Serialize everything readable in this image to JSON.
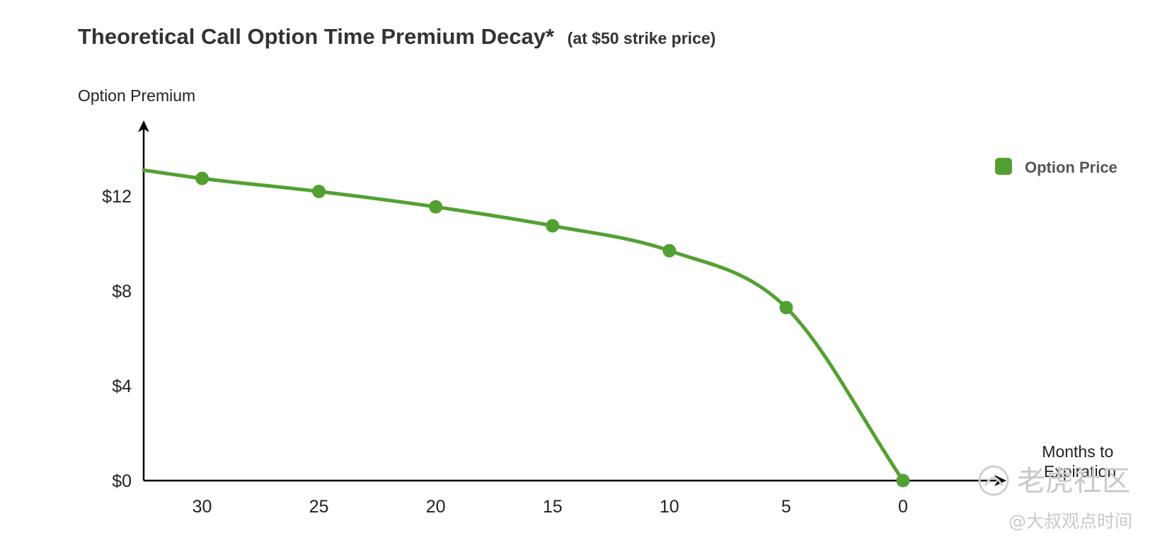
{
  "chart_data": {
    "type": "line",
    "title": "Theoretical Call Option Time Premium Decay*",
    "subtitle": "(at $50 strike price)",
    "ylabel": "Option Premium",
    "xlabel": "Months to Expiration",
    "x_ticks": [
      30,
      25,
      20,
      15,
      10,
      5,
      0
    ],
    "y_ticks": [
      0,
      4,
      8,
      12
    ],
    "y_tick_labels": [
      "$0",
      "$4",
      "$8",
      "$12"
    ],
    "xlim": [
      32.5,
      -4
    ],
    "ylim": [
      0,
      15.5
    ],
    "series": [
      {
        "name": "Option Price",
        "color": "#53a032",
        "x": [
          30,
          25,
          20,
          15,
          10,
          5,
          0
        ],
        "y": [
          12.75,
          12.2,
          11.55,
          10.75,
          9.7,
          7.3,
          0
        ]
      }
    ],
    "line_start": {
      "x": 32.5,
      "y": 13.1
    },
    "legend_position": "top-right",
    "grid": false
  },
  "watermark": {
    "text": "老虎社区",
    "sub_text": "@大叔观点时间"
  }
}
